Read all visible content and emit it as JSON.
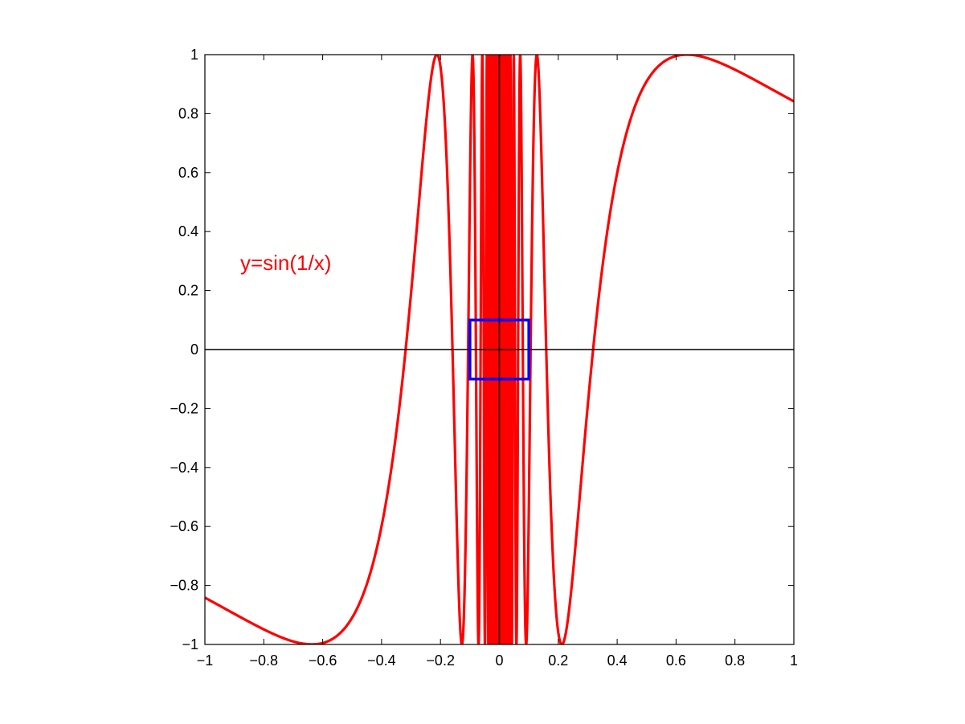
{
  "chart_data": {
    "type": "line",
    "title": "",
    "xlabel": "",
    "ylabel": "",
    "xlim": [
      -1,
      1
    ],
    "ylim": [
      -1,
      1
    ],
    "grid": false,
    "x_ticks": [
      -1,
      -0.8,
      -0.6,
      -0.4,
      -0.2,
      0,
      0.2,
      0.4,
      0.6,
      0.8,
      1
    ],
    "x_tick_labels": [
      "−1",
      "−0.8",
      "−0.6",
      "−0.4",
      "−0.2",
      "0",
      "0.2",
      "0.4",
      "0.6",
      "0.8",
      "1"
    ],
    "y_ticks": [
      -1,
      -0.8,
      -0.6,
      -0.4,
      -0.2,
      0,
      0.2,
      0.4,
      0.6,
      0.8,
      1
    ],
    "y_tick_labels": [
      "−1",
      "−0.8",
      "−0.6",
      "−0.4",
      "−0.2",
      "0",
      "0.2",
      "0.4",
      "0.6",
      "0.8",
      "1"
    ],
    "series": [
      {
        "function": "sin(1/x)",
        "color": "#ff0000",
        "x_range": [
          -1,
          1
        ]
      }
    ],
    "reference_lines": [
      {
        "orientation": "horizontal",
        "y": 0,
        "color": "#000000"
      },
      {
        "orientation": "vertical",
        "x": 0,
        "color": "#000000"
      }
    ],
    "highlight_box": {
      "x": [
        -0.1,
        0.1
      ],
      "y": [
        -0.1,
        0.1
      ],
      "color": "#0000ff"
    },
    "annotations": [
      {
        "text": "y=sin(1/x)",
        "x": -0.88,
        "y": 0.27,
        "color": "#ff0000"
      }
    ]
  }
}
